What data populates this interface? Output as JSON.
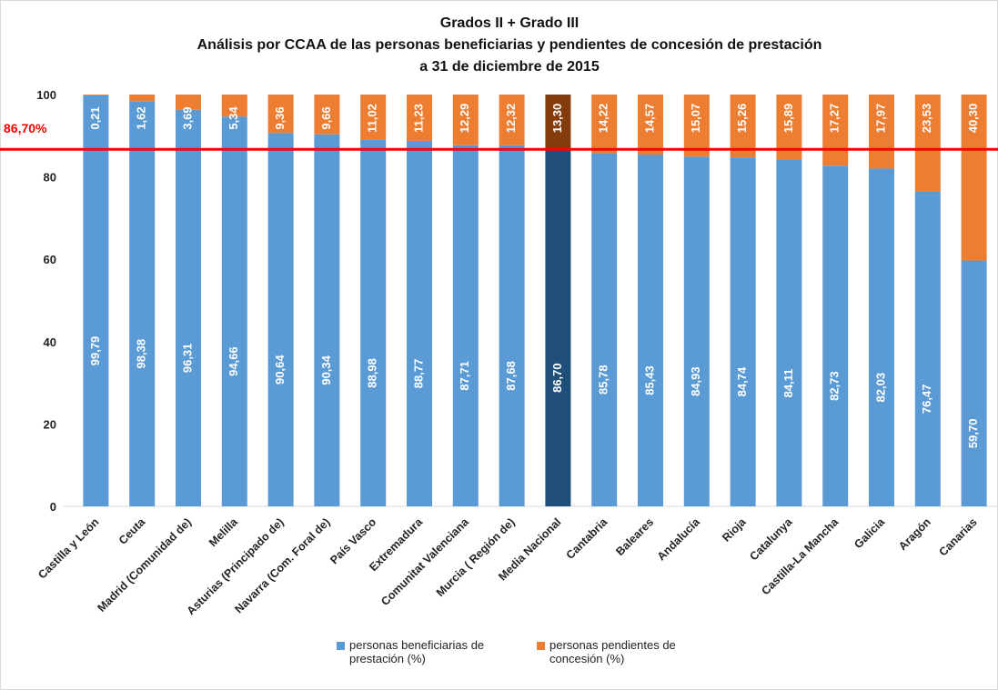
{
  "chart_data": {
    "type": "stacked_bar",
    "title": [
      "Grados II + Grado III",
      "Análisis por CCAA de las personas beneficiarias y pendientes de concesión de prestación",
      "a 31 de diciembre de 2015"
    ],
    "categories": [
      "Castilla y León",
      "Ceuta",
      "Madrid (Comunidad de)",
      "Melilla",
      "Asturias (Principado de)",
      "Navarra (Com. Foral de)",
      "País Vasco",
      "Extremadura",
      "Comunitat Valenciana",
      "Murcia ( Región de)",
      "Media Nacional",
      "Cantabria",
      "Baleares",
      "Andalucía",
      "Rioja",
      "Catalunya",
      "Castilla-La Mancha",
      "Galicia",
      "Aragón",
      "Canarias"
    ],
    "series": [
      {
        "name": "personas beneficiarias de prestación (%)",
        "color": "#5b9bd5",
        "highlight_color": "#1f4e79",
        "values": [
          99.79,
          98.38,
          96.31,
          94.66,
          90.64,
          90.34,
          88.98,
          88.77,
          87.71,
          87.68,
          86.7,
          85.78,
          85.43,
          84.93,
          84.74,
          84.11,
          82.73,
          82.03,
          76.47,
          59.7
        ],
        "value_labels": [
          "99,79",
          "98,38",
          "96,31",
          "94,66",
          "90,64",
          "90,34",
          "88,98",
          "88,77",
          "87,71",
          "87,68",
          "86,70",
          "85,78",
          "85,43",
          "84,93",
          "84,74",
          "84,11",
          "82,73",
          "82,03",
          "76,47",
          "59,70"
        ]
      },
      {
        "name": "personas pendientes de concesión (%)",
        "color": "#ed7d31",
        "highlight_color": "#843c0c",
        "values": [
          0.21,
          1.62,
          3.69,
          5.34,
          9.36,
          9.66,
          11.02,
          11.23,
          12.29,
          12.32,
          13.3,
          14.22,
          14.57,
          15.07,
          15.26,
          15.89,
          17.27,
          17.97,
          23.53,
          40.3
        ],
        "value_labels": [
          "0,21",
          "1,62",
          "3,69",
          "5,34",
          "9,36",
          "9,66",
          "11,02",
          "11,23",
          "12,29",
          "12,32",
          "13,30",
          "14,22",
          "14,57",
          "15,07",
          "15,26",
          "15,89",
          "17,27",
          "17,97",
          "23,53",
          "40,30"
        ]
      }
    ],
    "highlight_category": "Media Nacional",
    "reference_line": {
      "value": 86.7,
      "label": "86,70%",
      "color": "#ff0000"
    },
    "ylim": [
      0,
      100
    ],
    "yticks": [
      0,
      20,
      40,
      60,
      80,
      100
    ],
    "grid": false
  }
}
